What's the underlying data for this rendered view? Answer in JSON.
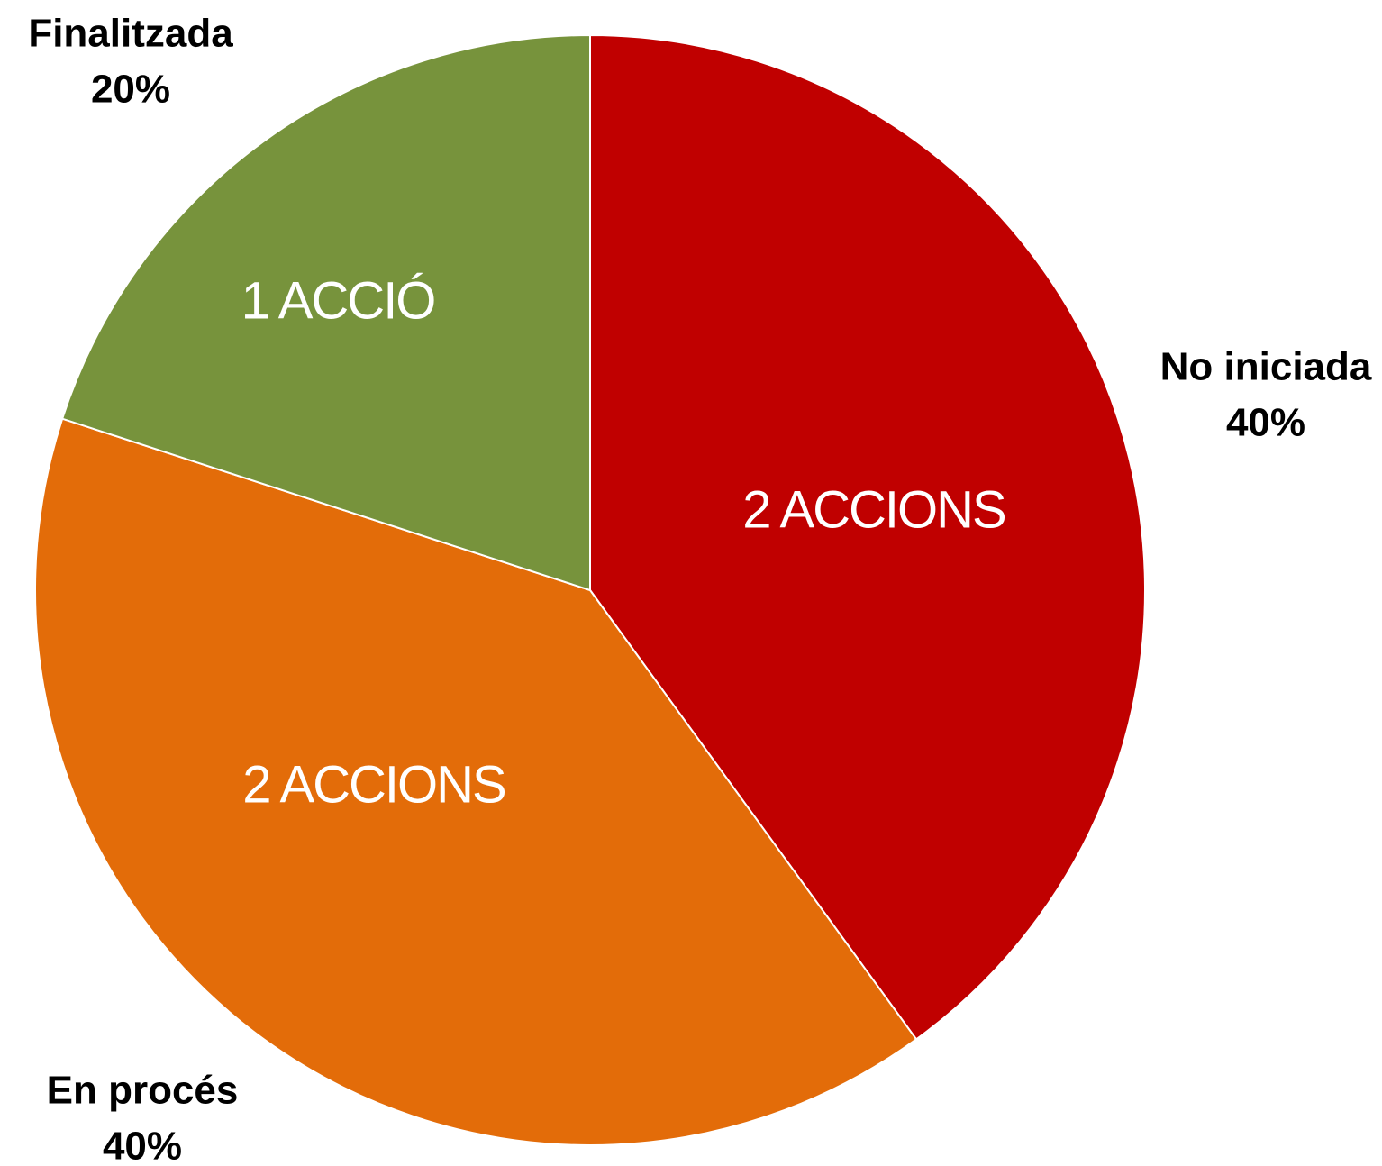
{
  "chart_data": {
    "type": "pie",
    "categories": [
      "No iniciada",
      "En procés",
      "Finalitzada"
    ],
    "values": [
      40,
      40,
      20
    ],
    "value_labels": [
      "40%",
      "40%",
      "20%"
    ],
    "inner_labels": [
      "2 ACCIONS",
      "2 ACCIONS",
      "1 ACCIÓ"
    ],
    "colors": [
      "#c00000",
      "#e36c09",
      "#77933c"
    ]
  }
}
